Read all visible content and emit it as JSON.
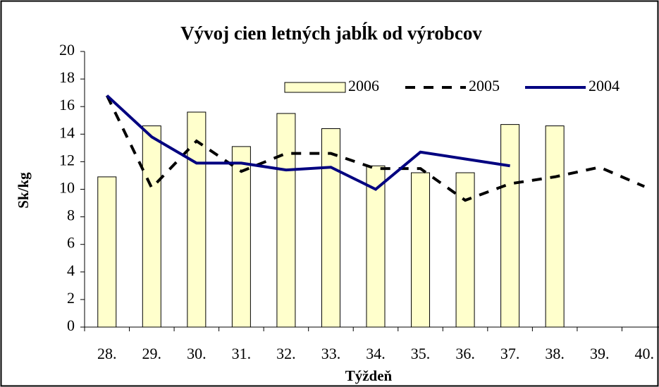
{
  "chart_data": {
    "type": "bar",
    "title": "Vývoj cien letných jabĺk od výrobcov",
    "x_label": "Týždeň",
    "y_label": "Sk/kg",
    "categories": [
      "28.",
      "29.",
      "30.",
      "31.",
      "32.",
      "33.",
      "34.",
      "35.",
      "36.",
      "37.",
      "38.",
      "39.",
      "40."
    ],
    "ylim": [
      0,
      20
    ],
    "yticks": [
      0,
      2,
      4,
      6,
      8,
      10,
      12,
      14,
      16,
      18,
      20
    ],
    "series": [
      {
        "name": "2006",
        "type": "bar",
        "color": "#ffffcc",
        "values": [
          10.9,
          14.6,
          15.6,
          13.1,
          15.5,
          14.4,
          11.7,
          11.2,
          11.2,
          14.7,
          14.6,
          null,
          null
        ]
      },
      {
        "name": "2005",
        "type": "line",
        "dashed": true,
        "color": "#000000",
        "values": [
          16.8,
          10.1,
          13.5,
          11.3,
          12.6,
          12.6,
          11.5,
          11.5,
          9.2,
          10.4,
          10.9,
          11.6,
          10.2
        ]
      },
      {
        "name": "2004",
        "type": "line",
        "dashed": false,
        "color": "#000080",
        "values": [
          16.8,
          13.8,
          11.9,
          11.9,
          11.4,
          11.6,
          10.0,
          12.7,
          12.2,
          11.7,
          null,
          null,
          null
        ]
      }
    ]
  }
}
